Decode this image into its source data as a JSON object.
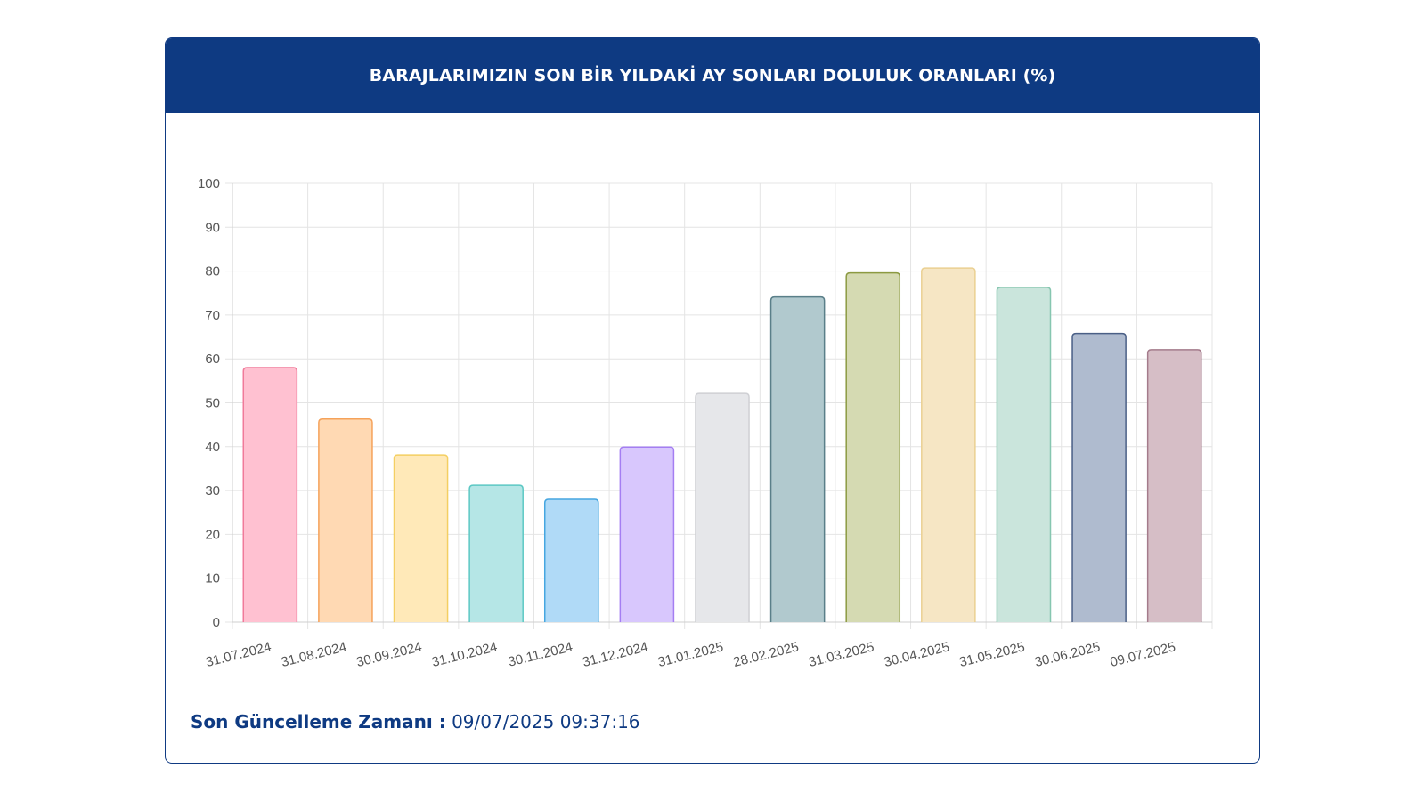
{
  "card": {
    "title": "BARAJLARIMIZIN SON BİR YILDAKİ AY SONLARI DOLULUK ORANLARI (%)"
  },
  "footer": {
    "label": "Son Güncelleme Zamanı :",
    "value": "09/07/2025 09:37:16"
  },
  "chart_data": {
    "type": "bar",
    "title": "BARAJLARIMIZIN SON BİR YILDAKİ AY SONLARI DOLULUK ORANLARI (%)",
    "xlabel": "",
    "ylabel": "",
    "ylim": [
      0,
      100
    ],
    "yticks": [
      0,
      10,
      20,
      30,
      40,
      50,
      60,
      70,
      80,
      90,
      100
    ],
    "grid": true,
    "legend": "none",
    "categories": [
      "31.07.2024",
      "31.08.2024",
      "30.09.2024",
      "31.10.2024",
      "30.11.2024",
      "31.12.2024",
      "31.01.2025",
      "28.02.2025",
      "31.03.2025",
      "30.04.2025",
      "31.05.2025",
      "30.06.2025",
      "09.07.2025"
    ],
    "values": [
      58.0,
      46.3,
      38.1,
      31.2,
      28.0,
      39.9,
      52.1,
      74.1,
      79.6,
      80.7,
      76.3,
      65.8,
      62.1
    ],
    "fill_colors": [
      "#ffc1d1",
      "#ffd9b3",
      "#ffe9b8",
      "#b5e6e6",
      "#b0daf7",
      "#d8c7fd",
      "#e6e7ea",
      "#b1c9ce",
      "#d5dab2",
      "#f6e6c4",
      "#cae5dc",
      "#afbbcf",
      "#d6bec6"
    ],
    "border_colors": [
      "#f07a9a",
      "#f5a25a",
      "#f4cf62",
      "#5cc8c4",
      "#46a6e0",
      "#a47ef2",
      "#cfd0d4",
      "#5a7f89",
      "#8c9a42",
      "#ead092",
      "#86c6b0",
      "#4a5f86",
      "#a47b8b"
    ]
  }
}
